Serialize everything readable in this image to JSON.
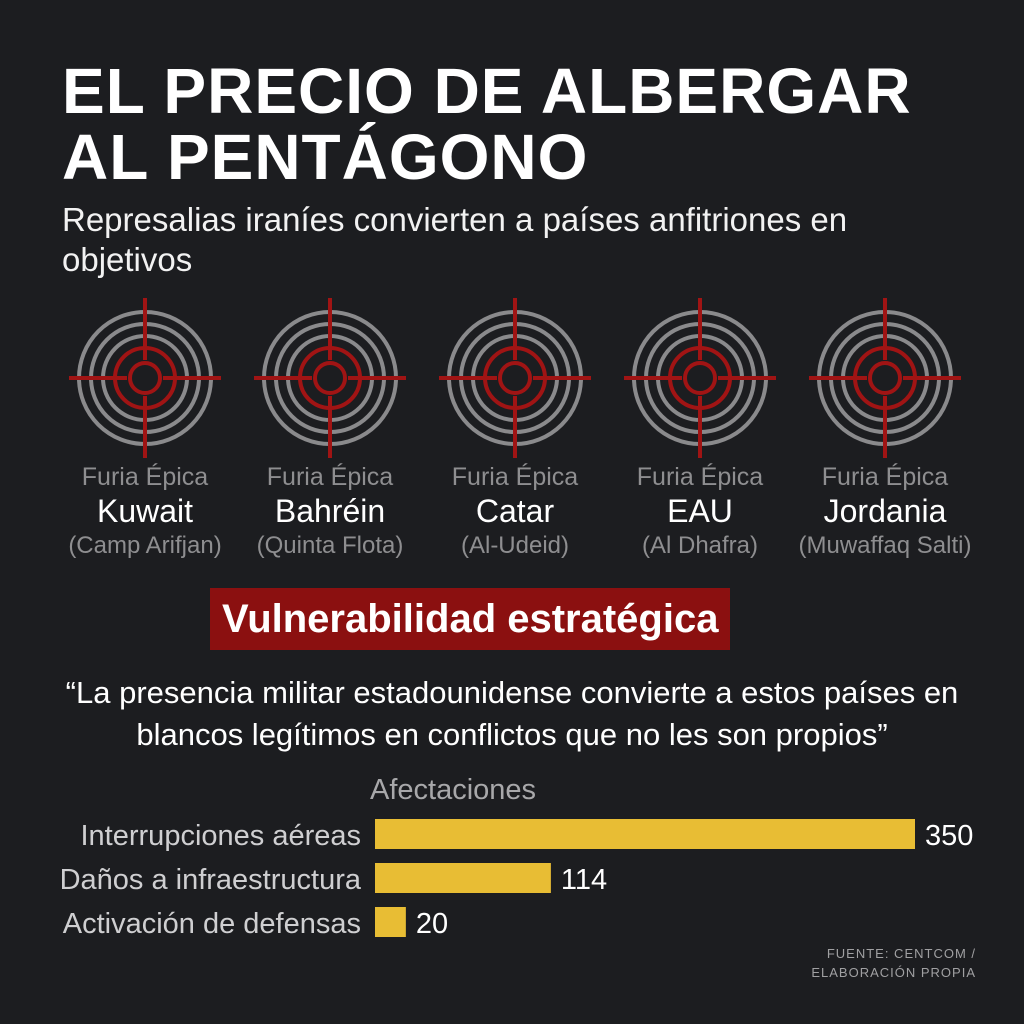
{
  "title": "EL PRECIO DE ALBERGAR AL PENTÁGONO",
  "subtitle": "Represalias iraníes convierten a países anfitriones en objetivos",
  "targets": [
    {
      "operation": "Furia Épica",
      "country": "Kuwait",
      "base": "(Camp Arifjan)"
    },
    {
      "operation": "Furia Épica",
      "country": "Bahréin",
      "base": "(Quinta Flota)"
    },
    {
      "operation": "Furia Épica",
      "country": "Catar",
      "base": "(Al-Udeid)"
    },
    {
      "operation": "Furia Épica",
      "country": "EAU",
      "base": "(Al Dhafra)"
    },
    {
      "operation": "Furia Épica",
      "country": "Jordania",
      "base": "(Muwaffaq Salti)"
    }
  ],
  "banner": "Vulnerabilidad estratégica",
  "quote": "“La presencia militar estadounidense convierte a estos países en blancos legítimos en conflictos que no les son propios”",
  "source_line1": "FUENTE: CENTCOM /",
  "source_line2": "ELABORACIÓN PROPIA",
  "colors": {
    "background": "#1c1d20",
    "bar": "#e8bd34",
    "banner": "#8b1010",
    "crosshair": "#a01414",
    "ring": "#8a8a8c"
  },
  "chart_data": {
    "type": "bar",
    "orientation": "horizontal",
    "title": "Afectaciones",
    "categories": [
      "Interrupciones aéreas",
      "Daños a infraestructura",
      "Activación de defensas"
    ],
    "values": [
      350,
      114,
      20
    ],
    "value_labels": [
      "350",
      "114",
      "20"
    ],
    "xlim": [
      0,
      350
    ],
    "grid": false
  }
}
